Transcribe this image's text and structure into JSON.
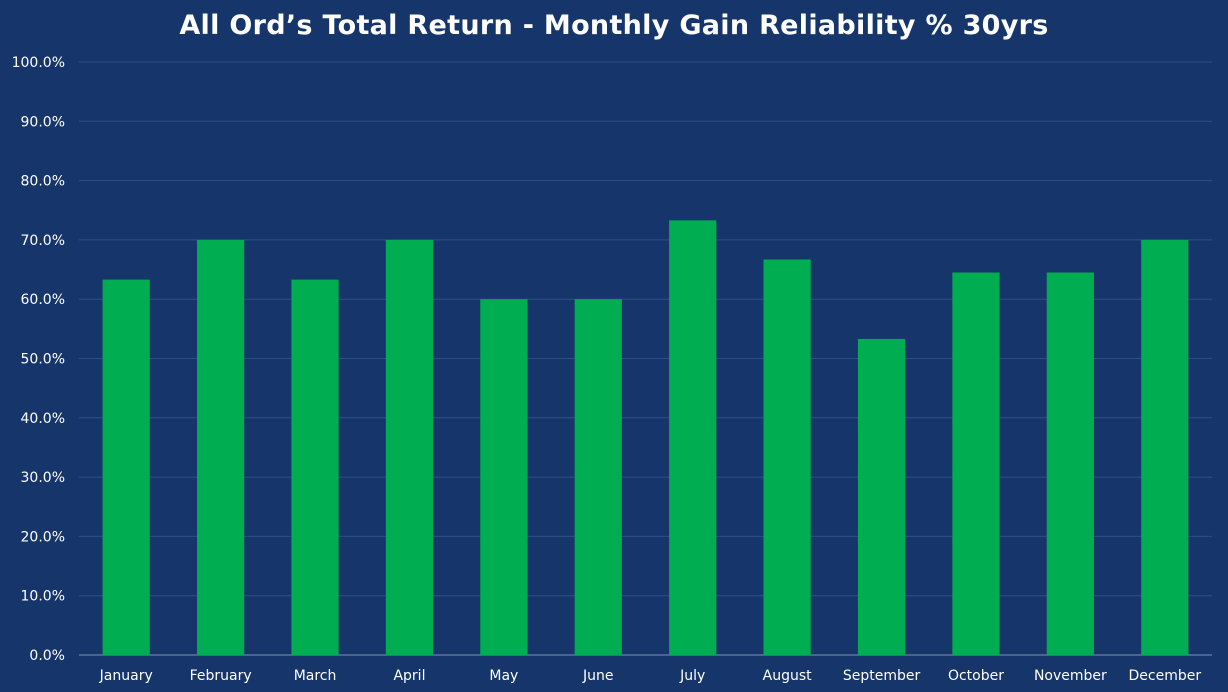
{
  "chart_data": {
    "type": "bar",
    "title": "All Ord’s Total Return - Monthly Gain Reliability % 30yrs",
    "xlabel": "",
    "ylabel": "",
    "categories": [
      "January",
      "February",
      "March",
      "April",
      "May",
      "June",
      "July",
      "August",
      "September",
      "October",
      "November",
      "December"
    ],
    "values": [
      63.3,
      70.0,
      63.3,
      70.0,
      60.0,
      60.0,
      73.3,
      66.7,
      53.3,
      64.5,
      64.5,
      70.0
    ],
    "ylim": [
      0,
      100
    ],
    "y_ticks": [
      "0.0%",
      "10.0%",
      "20.0%",
      "30.0%",
      "40.0%",
      "50.0%",
      "60.0%",
      "70.0%",
      "80.0%",
      "90.0%",
      "100.0%"
    ],
    "grid": true,
    "legend": "none",
    "colors": {
      "background": "#16366b",
      "bar": "#00ad50",
      "gridline": "#2e4f86",
      "axis": "#7f93b8",
      "text": "#ffffff"
    }
  }
}
